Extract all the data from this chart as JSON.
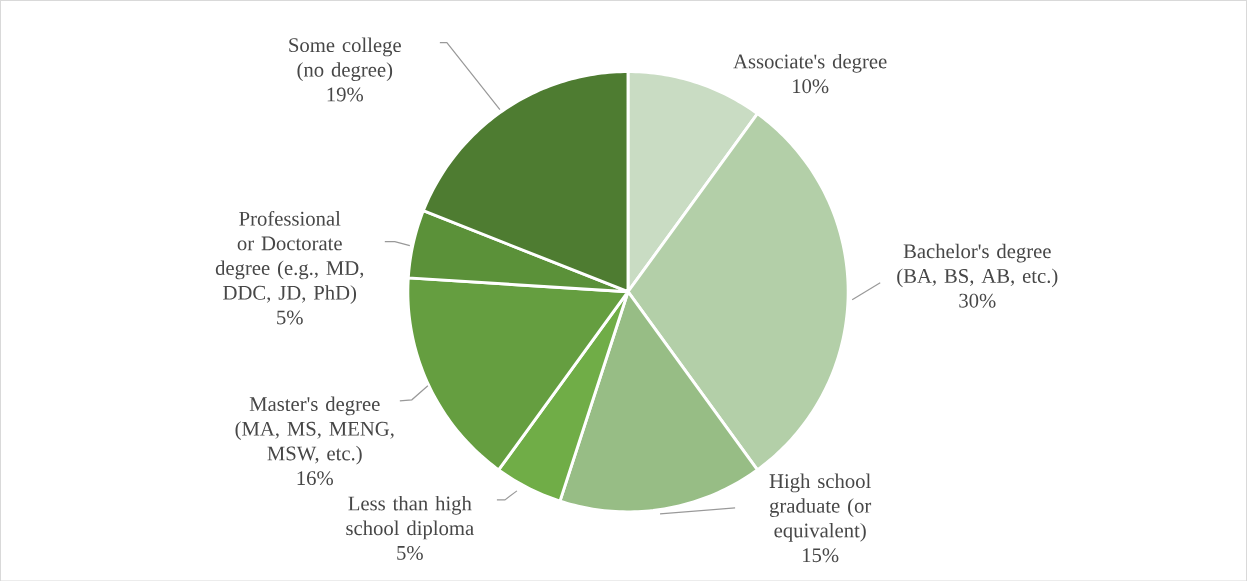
{
  "chart_data": {
    "type": "pie",
    "categories": [
      "Associate's degree",
      "Bachelor's degree (BA, BS, AB, etc.)",
      "High school graduate (or equivalent)",
      "Less than high school diploma",
      "Master's degree (MA, MS, MENG, MSW, etc.)",
      "Professional or Doctorate degree (e.g., MD, DDC, JD, PhD)",
      "Some college (no degree)"
    ],
    "values": [
      10,
      30,
      15,
      5,
      16,
      5,
      19
    ],
    "value_labels": [
      "10%",
      "30%",
      "15%",
      "5%",
      "16%",
      "5%",
      "19%"
    ],
    "colors": [
      "#c9dcc3",
      "#b3cfa8",
      "#97bd85",
      "#70ad47",
      "#659e40",
      "#5b9139",
      "#4e7c31"
    ]
  }
}
